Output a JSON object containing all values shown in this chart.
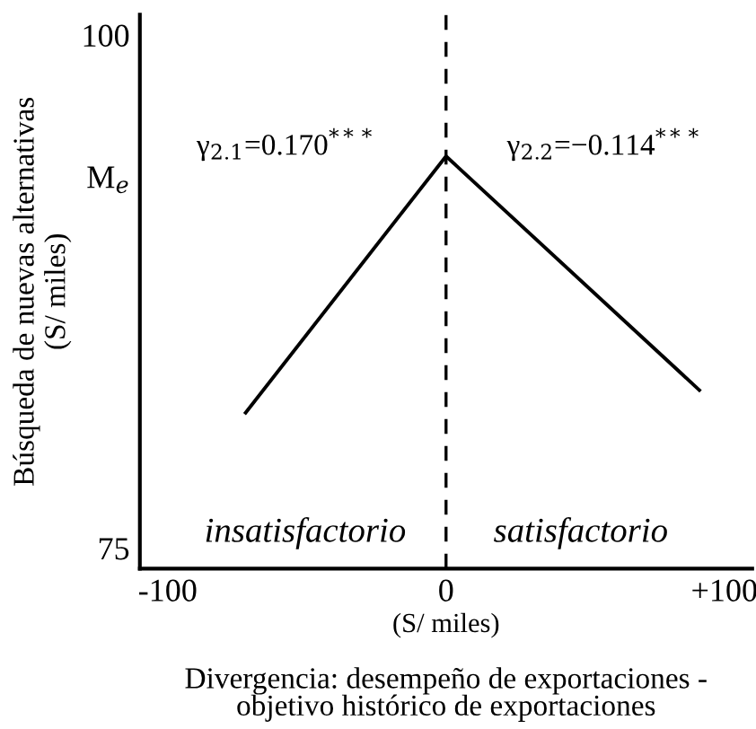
{
  "chart_data": {
    "type": "line",
    "xlabel": "(S/ miles)",
    "ylabel": "Búsqueda de nuevas alternativas\n(S/ miles)",
    "x": [
      -72,
      0,
      91
    ],
    "series": [
      {
        "color": "#000000",
        "values": [
          81.6,
          94.1,
          82.7
        ]
      }
    ],
    "xlim": [
      -110,
      110
    ],
    "xticks": [
      -100,
      0,
      {
        "value": 100,
        "label": "+100"
      }
    ],
    "ylim": [
      74,
      101
    ],
    "yticks": [
      75,
      {
        "value": 93.1,
        "label": "M$_{e}$"
      },
      100
    ],
    "ref_lines": [
      {
        "axis": "x",
        "value": 0,
        "color": "#000000",
        "line_style": "dashed"
      }
    ],
    "annotations": [
      "γ$_{2.1}$=0.170$^{***}$",
      "γ$_{2.2}$=−0.114$^{***}$",
      "insatisfactorio",
      "satisfactorio",
      "Divergencia: desempeño de exportaciones -\nobjetivo histórico de exportaciones"
    ],
    "grid": false,
    "legend": false,
    "marker": "none",
    "line_style": "solid"
  }
}
